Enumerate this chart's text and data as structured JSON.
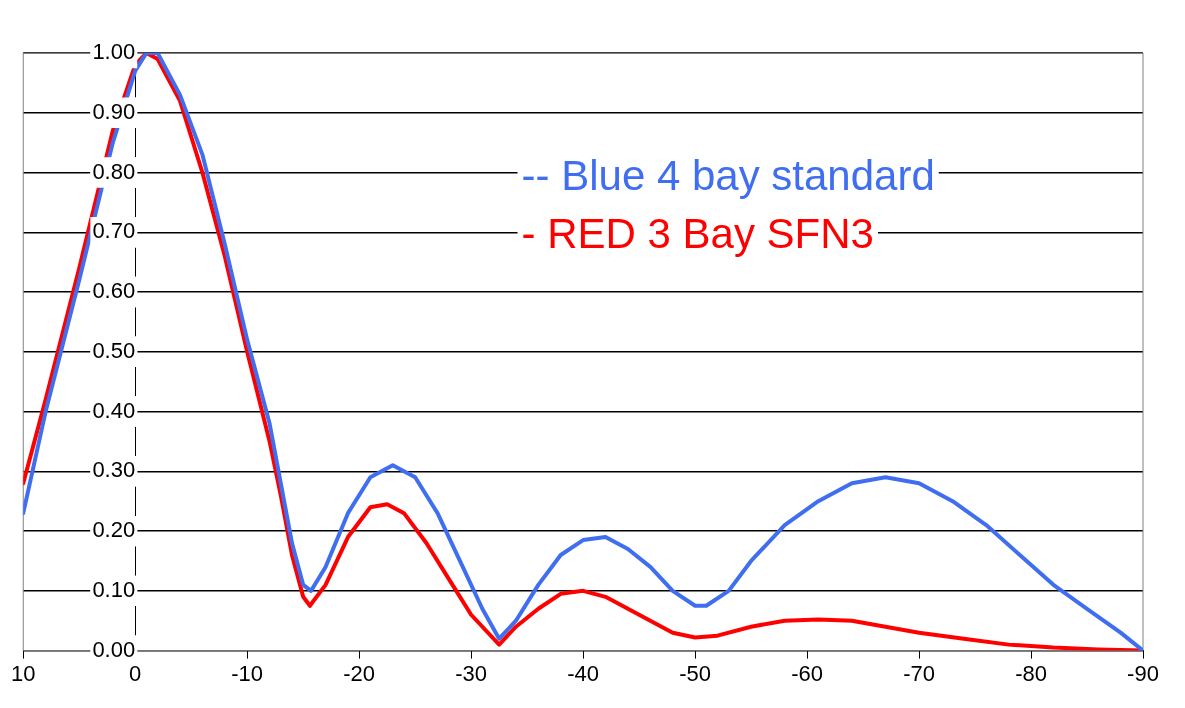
{
  "chart_data": {
    "type": "line",
    "xlim": [
      10,
      -90
    ],
    "xticks": [
      10,
      0,
      -10,
      -20,
      -30,
      -40,
      -50,
      -60,
      -70,
      -80,
      -90
    ],
    "ylim": [
      0,
      1
    ],
    "yticks": [
      {
        "value": 0,
        "label": "0.00"
      },
      {
        "value": 0.1,
        "label": "0.10"
      },
      {
        "value": 0.2,
        "label": "0.20"
      },
      {
        "value": 0.3,
        "label": "0.30"
      },
      {
        "value": 0.4,
        "label": "0.40"
      },
      {
        "value": 0.5,
        "label": "0.50"
      },
      {
        "value": 0.6,
        "label": "0.60"
      },
      {
        "value": 0.7,
        "label": "0.70"
      },
      {
        "value": 0.8,
        "label": "0.80"
      },
      {
        "value": 0.9,
        "label": "0.90"
      },
      {
        "value": 1,
        "label": "1.00"
      }
    ],
    "grid": "y",
    "legend": "top right",
    "marker": "none",
    "line_style": "solid",
    "series": [
      {
        "name": "-- Blue 4 bay standard",
        "color": "#3f6ff0",
        "x": [
          10,
          8,
          5,
          2,
          0,
          -1,
          -2,
          -4,
          -6,
          -8,
          -10,
          -12,
          -13,
          -14,
          -15,
          -15.7,
          -17,
          -19,
          -21,
          -23,
          -25,
          -27,
          -29,
          -31,
          -32.5,
          -34,
          -36,
          -38,
          -40,
          -42,
          -44,
          -46,
          -48,
          -50,
          -51,
          -53,
          -55,
          -58,
          -61,
          -64,
          -67,
          -70,
          -73,
          -76,
          -79,
          -82,
          -85,
          -88,
          -90
        ],
        "values": [
          0.23,
          0.4,
          0.62,
          0.85,
          0.97,
          1.0,
          1.0,
          0.93,
          0.83,
          0.68,
          0.52,
          0.38,
          0.28,
          0.18,
          0.11,
          0.1,
          0.14,
          0.23,
          0.29,
          0.31,
          0.29,
          0.23,
          0.15,
          0.07,
          0.02,
          0.05,
          0.11,
          0.16,
          0.185,
          0.19,
          0.17,
          0.14,
          0.1,
          0.075,
          0.075,
          0.1,
          0.15,
          0.21,
          0.25,
          0.28,
          0.29,
          0.28,
          0.25,
          0.21,
          0.16,
          0.11,
          0.07,
          0.03,
          0.0
        ]
      },
      {
        "name": "- RED 3 Bay SFN3",
        "color": "#ff0000",
        "x": [
          10,
          8,
          5,
          2,
          0,
          -1,
          -2,
          -4,
          -6,
          -8,
          -10,
          -12,
          -13,
          -14,
          -15,
          -15.6,
          -17,
          -19,
          -21,
          -22.5,
          -24,
          -26,
          -28,
          -30,
          -32.5,
          -34,
          -36,
          -38,
          -40,
          -42,
          -44,
          -46,
          -48,
          -50,
          -52,
          -55,
          -58,
          -61,
          -64,
          -67,
          -70,
          -74,
          -78,
          -82,
          -86,
          -90
        ],
        "values": [
          0.28,
          0.42,
          0.64,
          0.87,
          0.98,
          1.0,
          0.99,
          0.92,
          0.8,
          0.66,
          0.5,
          0.35,
          0.26,
          0.16,
          0.09,
          0.075,
          0.11,
          0.19,
          0.24,
          0.245,
          0.23,
          0.18,
          0.12,
          0.06,
          0.01,
          0.04,
          0.07,
          0.095,
          0.1,
          0.09,
          0.07,
          0.05,
          0.03,
          0.022,
          0.025,
          0.04,
          0.05,
          0.052,
          0.05,
          0.04,
          0.03,
          0.02,
          0.01,
          0.005,
          0.002,
          0.0
        ]
      }
    ]
  }
}
